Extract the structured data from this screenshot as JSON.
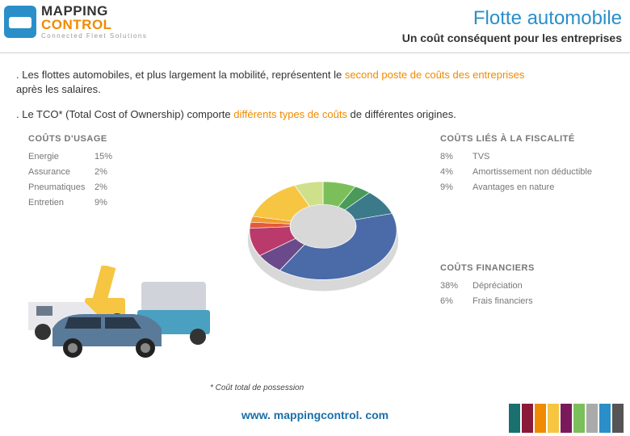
{
  "logo": {
    "line1a": "MAPPING",
    "line1b": "CONTROL",
    "tagline": "Connected Fleet Solutions"
  },
  "header": {
    "title": "Flotte automobile",
    "subtitle": "Un coût conséquent pour les entreprises"
  },
  "body": {
    "p1_a": ". Les flottes automobiles, et plus largement la mobilité, représentent le ",
    "p1_hl": "second poste de coûts des entreprises",
    "p1_b": " après les salaires.",
    "p2_a": ". Le TCO* (Total Cost of Ownership) comporte ",
    "p2_hl": "différents types de coûts",
    "p2_b": " de différentes origines."
  },
  "chart": {
    "type": "donut-3d",
    "sections": {
      "usage": {
        "header": "COÛTS D'USAGE",
        "items": [
          {
            "label": "Energie",
            "pct": "15%",
            "value": 15,
            "color": "#f6c642"
          },
          {
            "label": "Assurance",
            "pct": "2%",
            "value": 2,
            "color": "#f29a2e"
          },
          {
            "label": "Pneumatiques",
            "pct": "2%",
            "value": 2,
            "color": "#e25b3a"
          },
          {
            "label": "Entretien",
            "pct": "9%",
            "value": 9,
            "color": "#b93a6b"
          }
        ]
      },
      "fiscal": {
        "header": "COÛTS LIÉS À LA FISCALITÉ",
        "items": [
          {
            "label": "TVS",
            "pct": "8%",
            "value": 8,
            "color": "#7bbf5a"
          },
          {
            "label": "Amortissement non déductible",
            "pct": "4%",
            "value": 4,
            "color": "#4a9a5a"
          },
          {
            "label": "Avantages en nature",
            "pct": "9%",
            "value": 9,
            "color": "#3a7a8a"
          }
        ]
      },
      "financial": {
        "header": "COÛTS FINANCIERS",
        "items": [
          {
            "label": "Dépréciation",
            "pct": "38%",
            "value": 38,
            "color": "#4a6aa8"
          },
          {
            "label": "Frais financiers",
            "pct": "6%",
            "value": 6,
            "color": "#6a4a8a"
          }
        ]
      }
    },
    "ordered_slices": [
      {
        "value": 8,
        "color": "#7bbf5a"
      },
      {
        "value": 4,
        "color": "#4a9a5a"
      },
      {
        "value": 9,
        "color": "#3a7a8a"
      },
      {
        "value": 38,
        "color": "#4a6aa8"
      },
      {
        "value": 6,
        "color": "#6a4a8a"
      },
      {
        "value": 9,
        "color": "#b93a6b"
      },
      {
        "value": 2,
        "color": "#e25b3a"
      },
      {
        "value": 2,
        "color": "#f29a2e"
      },
      {
        "value": 15,
        "color": "#f6c642"
      },
      {
        "value": 7,
        "color": "#cfe08a"
      }
    ],
    "inner_ratio": 0.45,
    "shadow_color": "#d8d8d8"
  },
  "footnote": "* Coût total de possession",
  "url": "www. mappingcontrol. com",
  "stripes": [
    "#1a6f6f",
    "#8a1a3a",
    "#f08a00",
    "#f6c642",
    "#7a1a5a",
    "#7bbf5a",
    "#aaaaaa",
    "#2a8fc9",
    "#555555"
  ]
}
